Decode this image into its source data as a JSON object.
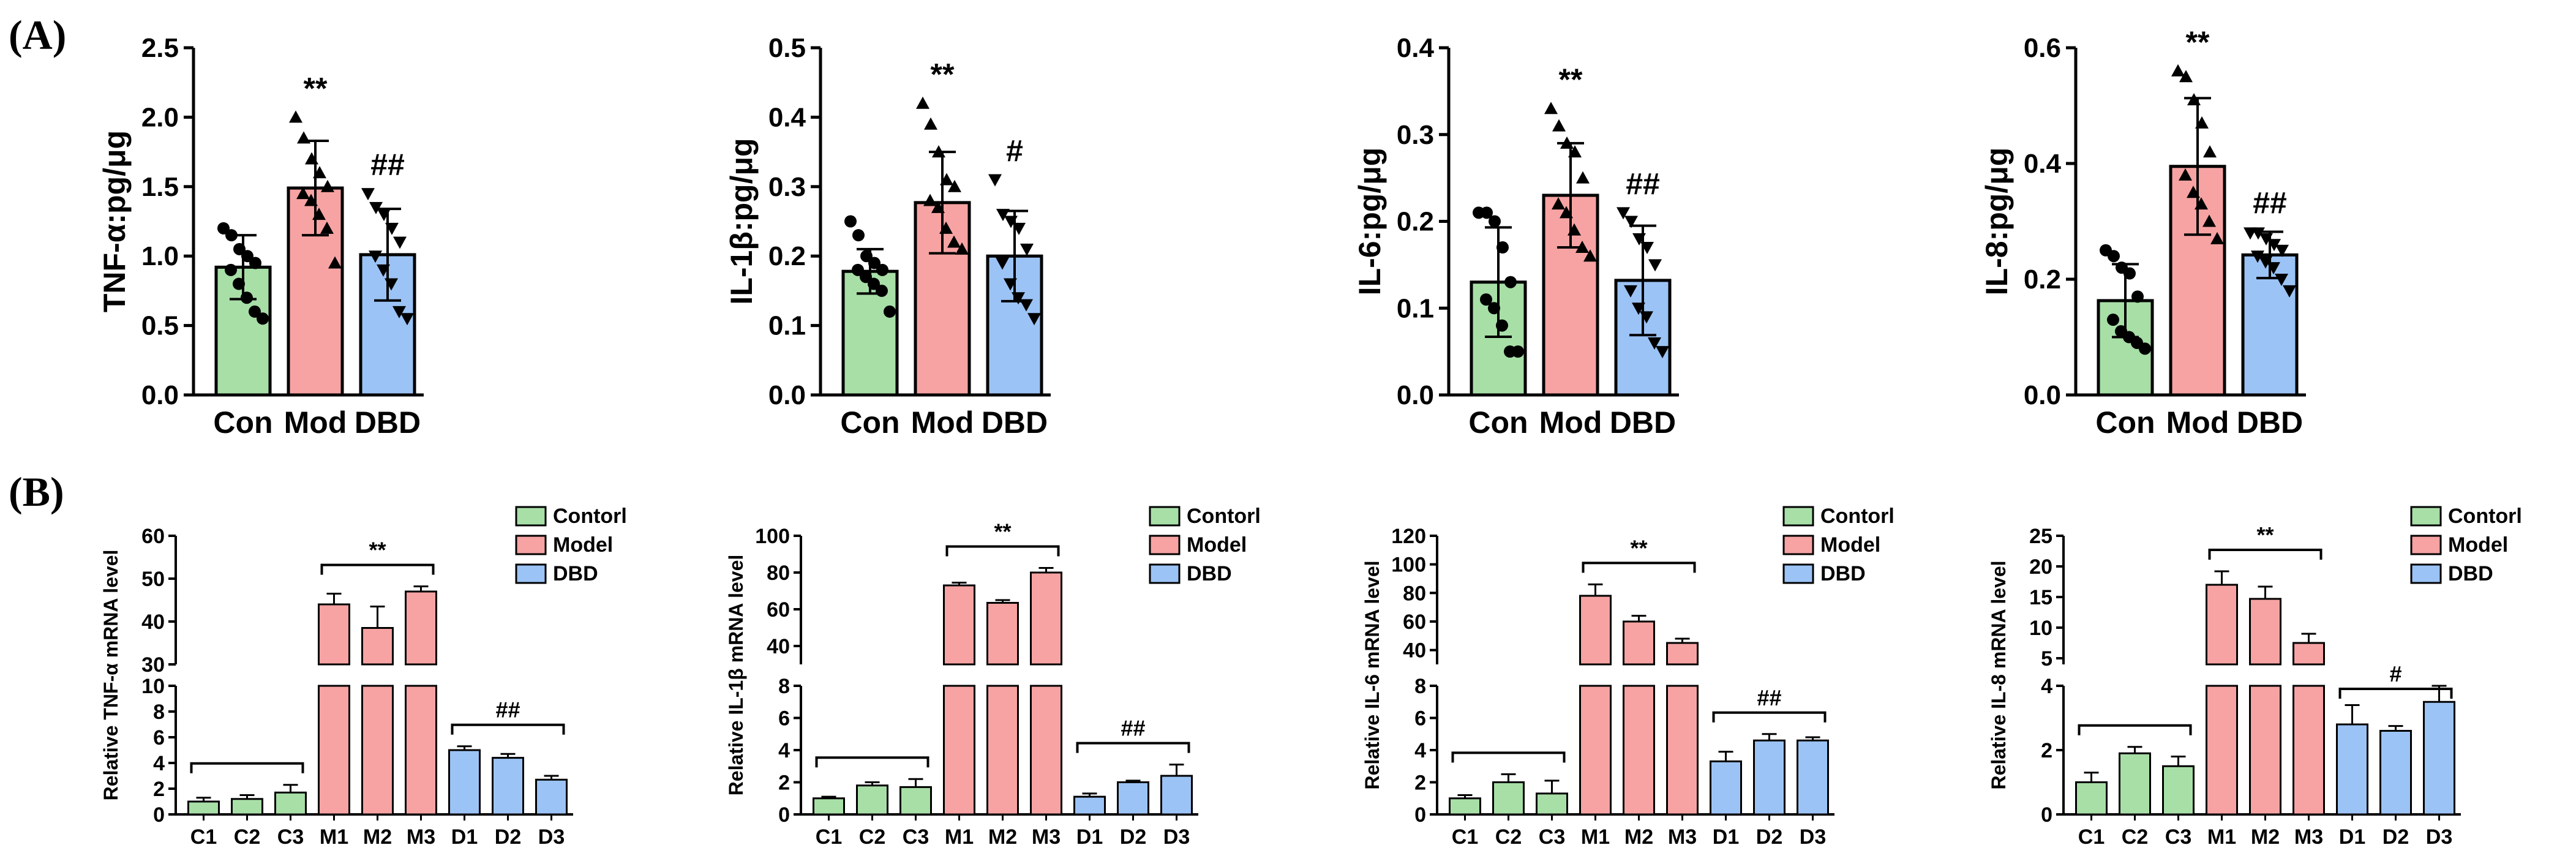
{
  "panel_labels": {
    "a": "(A)",
    "b": "(B)"
  },
  "colors": {
    "con": "#a8dfa7",
    "mod": "#f7a3a3",
    "dbd": "#9cc3f5",
    "axis": "#000000"
  },
  "chart_data": [
    {
      "type": "bar",
      "panel": "A",
      "categories": [
        "Con",
        "Mod",
        "DBD"
      ],
      "values": [
        0.92,
        1.49,
        1.01
      ],
      "errors": [
        0.23,
        0.34,
        0.33
      ],
      "points": [
        [
          1.2,
          1.15,
          1.05,
          1.0,
          0.95,
          0.9,
          0.8,
          0.7,
          0.6,
          0.55
        ],
        [
          2.0,
          1.85,
          1.7,
          1.6,
          1.5,
          1.45,
          1.4,
          1.3,
          1.2,
          0.95
        ],
        [
          1.45,
          1.35,
          1.3,
          1.2,
          1.1,
          1.0,
          0.9,
          0.8,
          0.6,
          0.55
        ]
      ],
      "markers": [
        "circle",
        "triangle",
        "triangle-down"
      ],
      "significance": [
        "",
        "**",
        "##"
      ],
      "ylabel": "TNF-α:pg/μg",
      "ylim": [
        0,
        2.5
      ],
      "yticks": [
        "0.0",
        "0.5",
        "1.0",
        "1.5",
        "2.0",
        "2.5"
      ]
    },
    {
      "type": "bar",
      "panel": "A",
      "categories": [
        "Con",
        "Mod",
        "DBD"
      ],
      "values": [
        0.178,
        0.277,
        0.2
      ],
      "errors": [
        0.032,
        0.073,
        0.065
      ],
      "points": [
        [
          0.25,
          0.23,
          0.2,
          0.19,
          0.18,
          0.18,
          0.17,
          0.16,
          0.15,
          0.12
        ],
        [
          0.42,
          0.39,
          0.35,
          0.31,
          0.3,
          0.28,
          0.27,
          0.24,
          0.22,
          0.21
        ],
        [
          0.31,
          0.26,
          0.25,
          0.24,
          0.21,
          0.19,
          0.16,
          0.14,
          0.13,
          0.11
        ]
      ],
      "markers": [
        "circle",
        "triangle",
        "triangle-down"
      ],
      "significance": [
        "",
        "**",
        "#"
      ],
      "ylabel": "IL-1β:pg/μg",
      "ylim": [
        0,
        0.5
      ],
      "yticks": [
        "0.0",
        "0.1",
        "0.2",
        "0.3",
        "0.4",
        "0.5"
      ]
    },
    {
      "type": "bar",
      "panel": "A",
      "categories": [
        "Con",
        "Mod",
        "DBD"
      ],
      "values": [
        0.13,
        0.23,
        0.132
      ],
      "errors": [
        0.063,
        0.06,
        0.063
      ],
      "points": [
        [
          0.21,
          0.21,
          0.2,
          0.17,
          0.13,
          0.11,
          0.1,
          0.08,
          0.05,
          0.05
        ],
        [
          0.33,
          0.31,
          0.29,
          0.28,
          0.25,
          0.22,
          0.21,
          0.19,
          0.17,
          0.16
        ],
        [
          0.21,
          0.2,
          0.18,
          0.17,
          0.15,
          0.12,
          0.1,
          0.09,
          0.06,
          0.05
        ]
      ],
      "markers": [
        "circle",
        "triangle",
        "triangle-down"
      ],
      "significance": [
        "",
        "**",
        "##"
      ],
      "ylabel": "IL-6:pg/μg",
      "ylim": [
        0,
        0.4
      ],
      "yticks": [
        "0.0",
        "0.1",
        "0.2",
        "0.3",
        "0.4"
      ]
    },
    {
      "type": "bar",
      "panel": "A",
      "categories": [
        "Con",
        "Mod",
        "DBD"
      ],
      "values": [
        0.163,
        0.395,
        0.242
      ],
      "errors": [
        0.063,
        0.118,
        0.04
      ],
      "points": [
        [
          0.25,
          0.24,
          0.22,
          0.21,
          0.17,
          0.13,
          0.11,
          0.1,
          0.09,
          0.08
        ],
        [
          0.56,
          0.55,
          0.51,
          0.47,
          0.42,
          0.38,
          0.35,
          0.33,
          0.3,
          0.27
        ],
        [
          0.28,
          0.28,
          0.27,
          0.26,
          0.25,
          0.24,
          0.23,
          0.22,
          0.2,
          0.18
        ]
      ],
      "markers": [
        "circle",
        "triangle",
        "triangle-down"
      ],
      "significance": [
        "",
        "**",
        "##"
      ],
      "ylabel": "IL-8:pg/μg",
      "ylim": [
        0,
        0.6
      ],
      "yticks": [
        "0.0",
        "0.2",
        "0.4",
        "0.6"
      ]
    },
    {
      "type": "bar",
      "panel": "B",
      "broken_axis": true,
      "categories": [
        "C1",
        "C2",
        "C3",
        "M1",
        "M2",
        "M3",
        "D1",
        "D2",
        "D3"
      ],
      "groups": [
        "con",
        "con",
        "con",
        "mod",
        "mod",
        "mod",
        "dbd",
        "dbd",
        "dbd"
      ],
      "values": [
        1.0,
        1.2,
        1.7,
        44,
        38.5,
        47,
        5.0,
        4.4,
        2.7
      ],
      "errors": [
        0.3,
        0.3,
        0.6,
        2.5,
        5.0,
        1.2,
        0.3,
        0.3,
        0.3
      ],
      "lower_range": [
        0,
        10
      ],
      "lower_ticks": [
        "0",
        "2",
        "4",
        "6",
        "8",
        "10"
      ],
      "upper_range": [
        30,
        60
      ],
      "upper_ticks": [
        "30",
        "40",
        "50",
        "60"
      ],
      "ylabel": "Relative TNF-α mRNA level",
      "legend": [
        "Contorl",
        "Model",
        "DBD"
      ],
      "brackets": [
        {
          "from": 0,
          "to": 2,
          "label": ""
        },
        {
          "from": 3,
          "to": 5,
          "label": "**"
        },
        {
          "from": 6,
          "to": 8,
          "label": "##"
        }
      ]
    },
    {
      "type": "bar",
      "panel": "B",
      "broken_axis": true,
      "categories": [
        "C1",
        "C2",
        "C3",
        "M1",
        "M2",
        "M3",
        "D1",
        "D2",
        "D3"
      ],
      "groups": [
        "con",
        "con",
        "con",
        "mod",
        "mod",
        "mod",
        "dbd",
        "dbd",
        "dbd"
      ],
      "values": [
        1.0,
        1.8,
        1.7,
        73,
        63.5,
        80,
        1.1,
        2.0,
        2.4
      ],
      "errors": [
        0.1,
        0.2,
        0.5,
        1.5,
        1.5,
        2.5,
        0.2,
        0.1,
        0.7
      ],
      "lower_range": [
        0,
        8
      ],
      "lower_ticks": [
        "0",
        "2",
        "4",
        "6",
        "8"
      ],
      "upper_range": [
        30,
        100
      ],
      "upper_ticks": [
        "40",
        "60",
        "80",
        "100"
      ],
      "ylabel": "Relative IL-1β mRNA level",
      "legend": [
        "Contorl",
        "Model",
        "DBD"
      ],
      "brackets": [
        {
          "from": 0,
          "to": 2,
          "label": ""
        },
        {
          "from": 3,
          "to": 5,
          "label": "**"
        },
        {
          "from": 6,
          "to": 8,
          "label": "##"
        }
      ]
    },
    {
      "type": "bar",
      "panel": "B",
      "broken_axis": true,
      "categories": [
        "C1",
        "C2",
        "C3",
        "M1",
        "M2",
        "M3",
        "D1",
        "D2",
        "D3"
      ],
      "groups": [
        "con",
        "con",
        "con",
        "mod",
        "mod",
        "mod",
        "dbd",
        "dbd",
        "dbd"
      ],
      "values": [
        1.0,
        2.0,
        1.3,
        78,
        60,
        45,
        3.3,
        4.6,
        4.6
      ],
      "errors": [
        0.2,
        0.5,
        0.8,
        8,
        4,
        3,
        0.6,
        0.4,
        0.2
      ],
      "lower_range": [
        0,
        8
      ],
      "lower_ticks": [
        "0",
        "2",
        "4",
        "6",
        "8"
      ],
      "upper_range": [
        30,
        120
      ],
      "upper_ticks": [
        "40",
        "60",
        "80",
        "100",
        "120"
      ],
      "ylabel": "Relative IL-6 mRNA level",
      "legend": [
        "Contorl",
        "Model",
        "DBD"
      ],
      "brackets": [
        {
          "from": 0,
          "to": 2,
          "label": ""
        },
        {
          "from": 3,
          "to": 5,
          "label": "**"
        },
        {
          "from": 6,
          "to": 8,
          "label": "##"
        }
      ]
    },
    {
      "type": "bar",
      "panel": "B",
      "broken_axis": true,
      "categories": [
        "C1",
        "C2",
        "C3",
        "M1",
        "M2",
        "M3",
        "D1",
        "D2",
        "D3"
      ],
      "groups": [
        "con",
        "con",
        "con",
        "mod",
        "mod",
        "mod",
        "dbd",
        "dbd",
        "dbd"
      ],
      "values": [
        1.0,
        1.9,
        1.5,
        17,
        14.7,
        7.5,
        2.8,
        2.6,
        3.5
      ],
      "errors": [
        0.3,
        0.2,
        0.3,
        2.2,
        2.0,
        1.5,
        0.6,
        0.15,
        0.5
      ],
      "lower_range": [
        0,
        4
      ],
      "lower_ticks": [
        "0",
        "2",
        "4"
      ],
      "upper_range": [
        4,
        25
      ],
      "upper_ticks": [
        "5",
        "10",
        "15",
        "20",
        "25"
      ],
      "ylabel": "Relative IL-8 mRNA level",
      "legend": [
        "Contorl",
        "Model",
        "DBD"
      ],
      "brackets": [
        {
          "from": 0,
          "to": 2,
          "label": ""
        },
        {
          "from": 3,
          "to": 5,
          "label": "**"
        },
        {
          "from": 6,
          "to": 8,
          "label": "#"
        }
      ]
    }
  ]
}
